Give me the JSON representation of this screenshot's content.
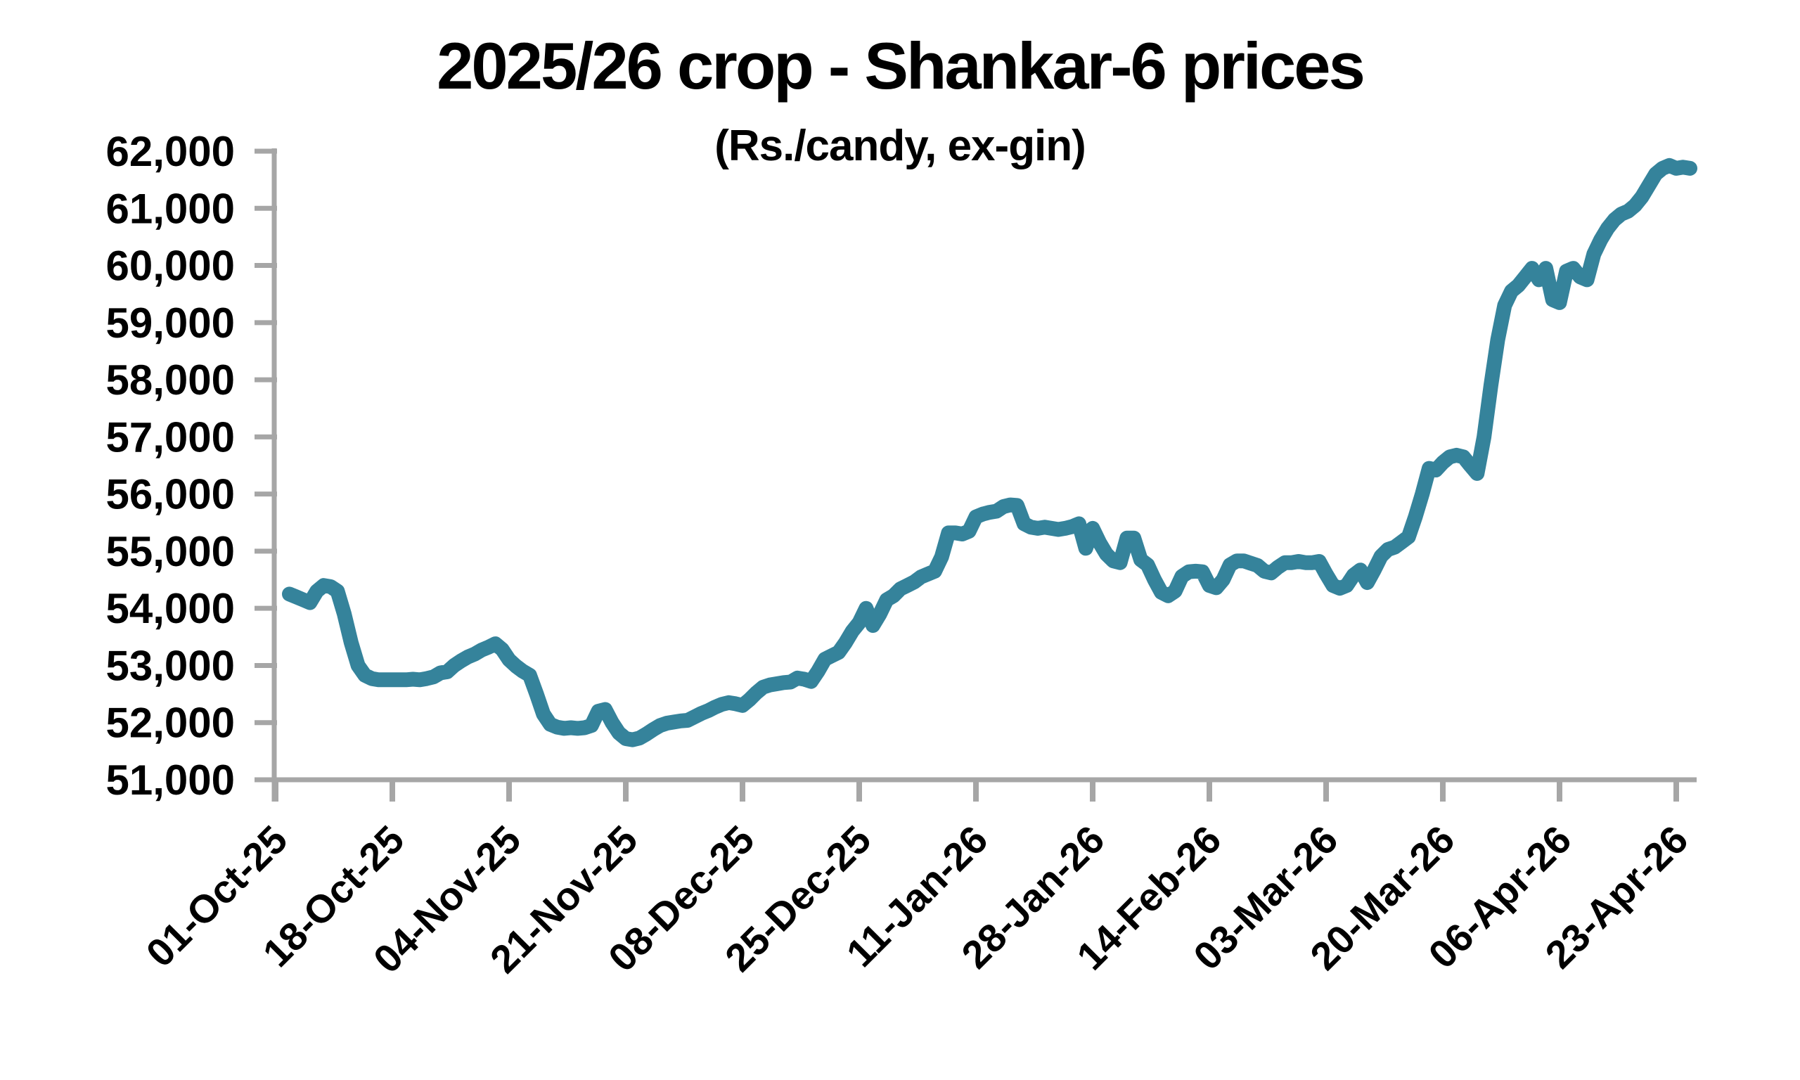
{
  "chart_data": {
    "type": "line",
    "title": "2025/26 crop - Shankar-6 prices",
    "subtitle": "(Rs./candy, ex-gin)",
    "xlabel": "",
    "ylabel": "",
    "ylim": [
      51000,
      62000
    ],
    "y_tick_step": 1000,
    "y_tick_labels": [
      "51,000",
      "52,000",
      "53,000",
      "54,000",
      "55,000",
      "56,000",
      "57,000",
      "58,000",
      "59,000",
      "60,000",
      "61,000",
      "62,000"
    ],
    "x_tick_labels": [
      "01-Oct-25",
      "18-Oct-25",
      "04-Nov-25",
      "21-Nov-25",
      "08-Dec-25",
      "25-Dec-25",
      "11-Jan-26",
      "28-Jan-26",
      "14-Feb-26",
      "03-Mar-26",
      "20-Mar-26",
      "06-Apr-26",
      "23-Apr-26"
    ],
    "x_tick_interval_days": 17,
    "grid": false,
    "legend": "none",
    "line_color": "#35839b",
    "axis_color": "#a6a6a6",
    "text_color": "#000000",
    "series": [
      {
        "name": "Shankar-6 price (Rs./candy, ex-gin)",
        "start_date": "03-Oct-25",
        "end_date": "25-Apr-26",
        "frequency": "daily",
        "values": [
          54250,
          54200,
          54150,
          54100,
          54300,
          54400,
          54380,
          54300,
          53900,
          53400,
          53000,
          52830,
          52770,
          52750,
          52750,
          52750,
          52750,
          52750,
          52760,
          52750,
          52770,
          52800,
          52870,
          52890,
          53000,
          53080,
          53150,
          53200,
          53270,
          53320,
          53380,
          53280,
          53100,
          52990,
          52900,
          52830,
          52500,
          52150,
          51970,
          51920,
          51900,
          51910,
          51900,
          51910,
          51950,
          52200,
          52230,
          52000,
          51820,
          51720,
          51700,
          51730,
          51800,
          51880,
          51950,
          51990,
          52010,
          52030,
          52040,
          52100,
          52160,
          52210,
          52270,
          52320,
          52350,
          52330,
          52300,
          52400,
          52520,
          52620,
          52660,
          52680,
          52700,
          52710,
          52780,
          52760,
          52720,
          52900,
          53110,
          53170,
          53230,
          53400,
          53600,
          53750,
          54000,
          53700,
          53900,
          54150,
          54220,
          54340,
          54400,
          54460,
          54550,
          54600,
          54650,
          54900,
          55320,
          55320,
          55300,
          55350,
          55600,
          55650,
          55680,
          55700,
          55780,
          55810,
          55800,
          55480,
          55420,
          55400,
          55420,
          55400,
          55380,
          55400,
          55430,
          55480,
          55050,
          55400,
          55150,
          54950,
          54830,
          54800,
          55230,
          55230,
          54850,
          54760,
          54500,
          54280,
          54220,
          54300,
          54560,
          54640,
          54650,
          54640,
          54400,
          54360,
          54500,
          54760,
          54830,
          54830,
          54790,
          54750,
          54650,
          54620,
          54720,
          54800,
          54800,
          54820,
          54800,
          54800,
          54820,
          54600,
          54400,
          54350,
          54400,
          54580,
          54670,
          54450,
          54670,
          54910,
          55030,
          55070,
          55160,
          55250,
          55600,
          56000,
          56450,
          56420,
          56550,
          56650,
          56680,
          56650,
          56500,
          56360,
          57000,
          57900,
          58700,
          59300,
          59550,
          59650,
          59800,
          59950,
          59750,
          59950,
          59400,
          59350,
          59900,
          59950,
          59800,
          59750,
          60200,
          60450,
          60650,
          60800,
          60900,
          60950,
          61050,
          61200,
          61400,
          61600,
          61700,
          61750,
          61700,
          61720,
          61700
        ]
      }
    ]
  }
}
